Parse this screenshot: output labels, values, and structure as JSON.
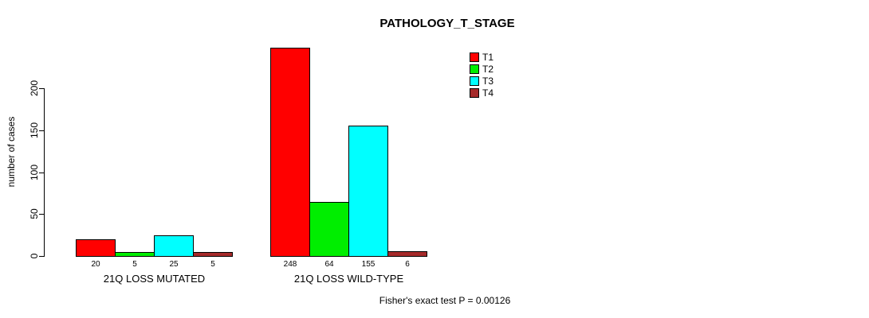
{
  "chart_data": {
    "type": "bar",
    "title": "PATHOLOGY_T_STAGE",
    "ylabel": "number of cases",
    "xlabel": "",
    "yticks": [
      0,
      50,
      100,
      150,
      200
    ],
    "ylim": [
      0,
      248
    ],
    "grid": false,
    "legend_position": "top-right",
    "categories": [
      "21Q LOSS MUTATED",
      "21Q LOSS WILD-TYPE"
    ],
    "series": [
      {
        "name": "T1",
        "color": "#FF0000",
        "values": [
          20,
          248
        ]
      },
      {
        "name": "T2",
        "color": "#00EE00",
        "values": [
          5,
          64
        ]
      },
      {
        "name": "T3",
        "color": "#00FFFF",
        "values": [
          25,
          155
        ]
      },
      {
        "name": "T4",
        "color": "#A52A2A",
        "values": [
          5,
          6
        ]
      }
    ],
    "bar_value_labels": [
      [
        "20",
        "5",
        "25",
        "5"
      ],
      [
        "248",
        "64",
        "155",
        "6"
      ]
    ],
    "footnote": "Fisher's exact test P = 0.00126"
  }
}
